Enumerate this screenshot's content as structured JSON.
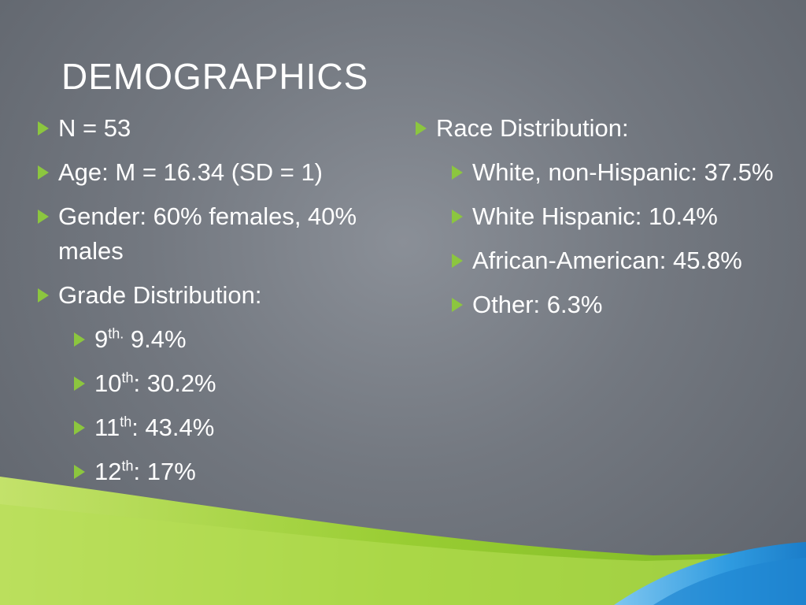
{
  "slide": {
    "title": "DEMOGRAPHICS"
  },
  "left": {
    "n": "N = 53",
    "age": "Age: M = 16.34 (SD = 1)",
    "gender": "Gender: 60% females, 40% males",
    "grade_heading": "Grade Distribution:",
    "grades": [
      {
        "num": "9",
        "suffix": "th.",
        "value": " 9.4%"
      },
      {
        "num": "10",
        "suffix": "th",
        "value": ": 30.2%"
      },
      {
        "num": "11",
        "suffix": "th",
        "value": ": 43.4%"
      },
      {
        "num": "12",
        "suffix": "th",
        "value": ": 17%"
      }
    ]
  },
  "right": {
    "race_heading": "Race Distribution:",
    "races": [
      "White, non-Hispanic: 37.5%",
      "White Hispanic: 10.4%",
      "African-American: 45.8%",
      "Other: 6.3%"
    ]
  },
  "colors": {
    "bullet": "#8cc63f",
    "wave_green": "#9bd22f",
    "wave_blue": "#2f9be0"
  }
}
